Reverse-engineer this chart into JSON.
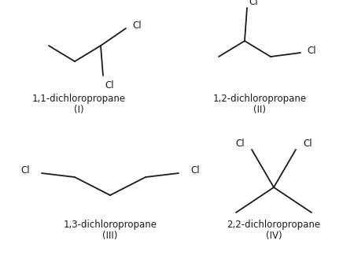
{
  "background_color": "#ffffff",
  "line_color": "#1a1a1a",
  "text_color": "#1a1a1a",
  "font_size_label": 8.5,
  "font_size_roman": 8.5,
  "lw": 1.3,
  "structures": [
    {
      "name": "1,1-dichloropropane",
      "roman": "(I)"
    },
    {
      "name": "1,2-dichloropropane",
      "roman": "(II)"
    },
    {
      "name": "1,3-dichloropropane",
      "roman": "(III)"
    },
    {
      "name": "2,2-dichloropropane",
      "roman": "(IV)"
    }
  ]
}
